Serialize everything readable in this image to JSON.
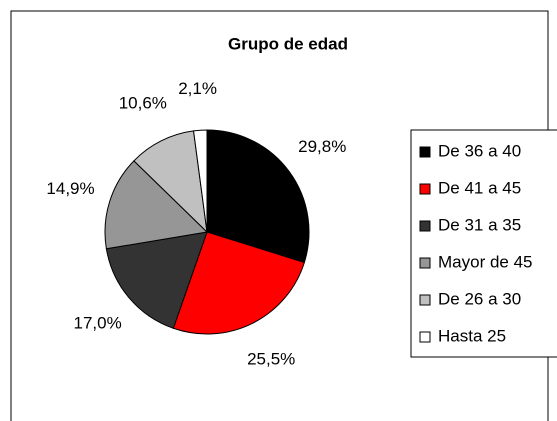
{
  "chart_data": {
    "type": "pie",
    "title": "Grupo de edad",
    "categories": [
      "De 36 a 40",
      "De 41 a 45",
      "De 31 a 35",
      "Mayor de 45",
      "De 26 a 30",
      "Hasta 25"
    ],
    "values": [
      29.8,
      25.5,
      17.0,
      14.9,
      10.6,
      2.1
    ],
    "value_labels": [
      "29,8%",
      "25,5%",
      "17,0%",
      "14,9%",
      "10,6%",
      "2,1%"
    ],
    "colors": [
      "#000000",
      "#ff0000",
      "#333333",
      "#969696",
      "#c0c0c0",
      "#ffffff"
    ],
    "legend": "right"
  }
}
